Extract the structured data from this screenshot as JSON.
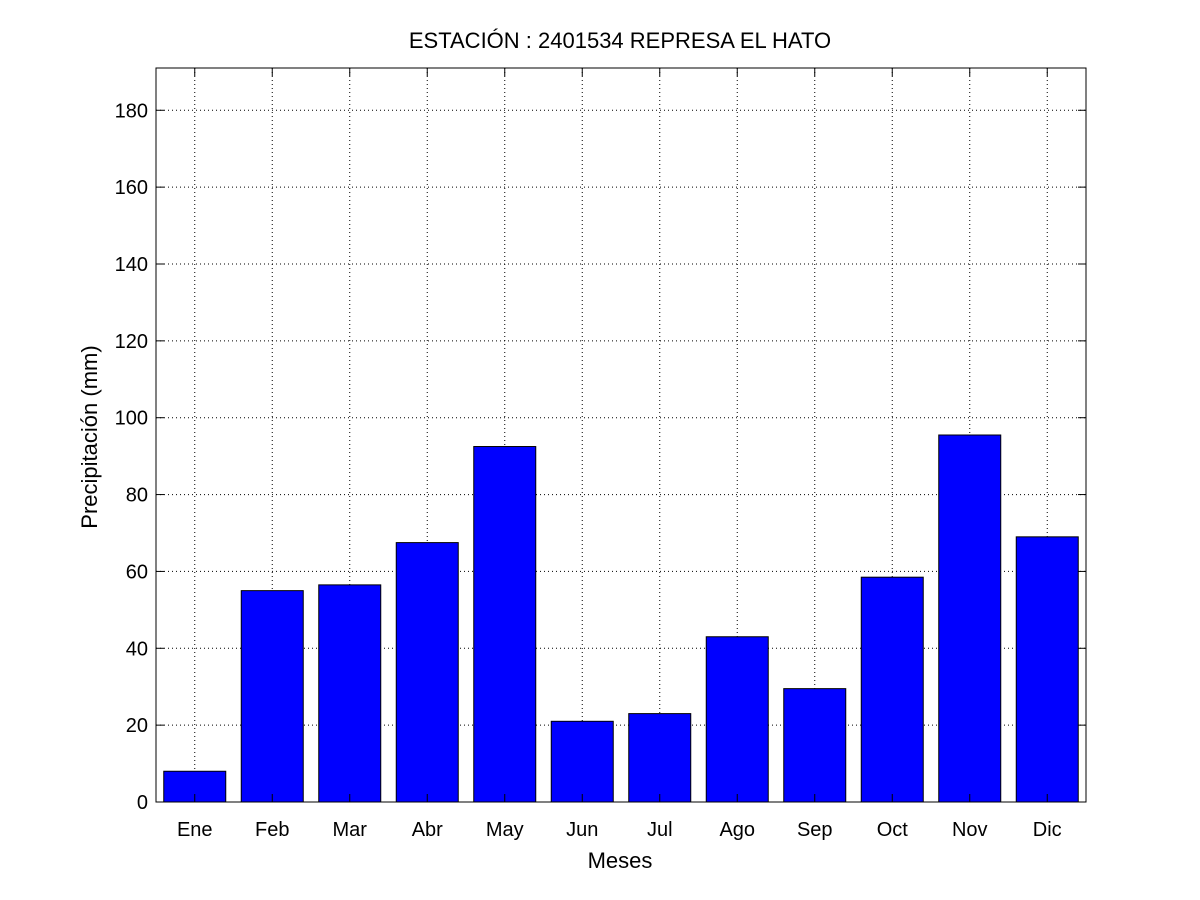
{
  "chart_data": {
    "type": "bar",
    "title": "ESTACIÓN :  2401534  REPRESA EL HATO",
    "xlabel": "Meses",
    "ylabel": "Precipitación (mm)",
    "categories": [
      "Ene",
      "Feb",
      "Mar",
      "Abr",
      "May",
      "Jun",
      "Jul",
      "Ago",
      "Sep",
      "Oct",
      "Nov",
      "Dic"
    ],
    "values": [
      8,
      55,
      56.5,
      67.5,
      92.5,
      21,
      23,
      43,
      29.5,
      58.5,
      95.5,
      69
    ],
    "ylim": [
      0,
      191
    ],
    "yticks": [
      0,
      20,
      40,
      60,
      80,
      100,
      120,
      140,
      160,
      180
    ],
    "grid": true,
    "bar_color": "#0000ff",
    "legend": null
  }
}
